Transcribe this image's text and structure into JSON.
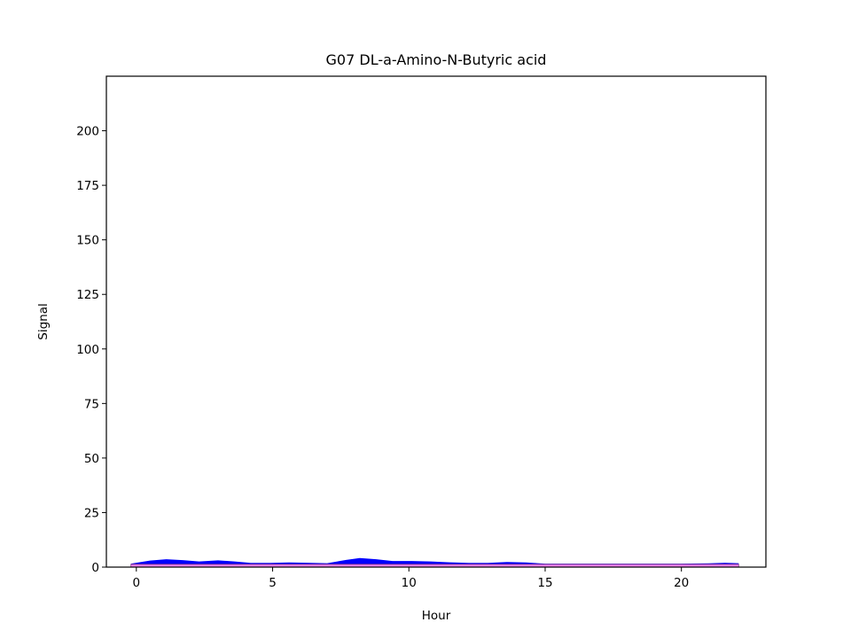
{
  "chart_data": {
    "type": "area",
    "title": "G07 DL-a-Amino-N-Butyric acid",
    "xlabel": "Hour",
    "ylabel": "Signal",
    "xlim": [
      -1.1,
      23.1
    ],
    "ylim": [
      0,
      225
    ],
    "xticks": [
      0,
      5,
      10,
      15,
      20
    ],
    "yticks": [
      0,
      25,
      50,
      75,
      100,
      125,
      150,
      175,
      200
    ],
    "grid": false,
    "legend": "none",
    "colors": {
      "upper_fill": "#0000ff",
      "lower_fill": "#ee82ee"
    },
    "series": [
      {
        "x": [
          -0.2,
          0.5,
          1.1,
          1.7,
          2.3,
          3.0,
          3.6,
          4.2,
          4.9,
          5.6,
          6.3,
          7.0,
          7.7,
          8.2,
          8.8,
          9.4,
          10.1,
          10.8,
          11.5,
          12.2,
          12.9,
          13.6,
          14.3,
          15.0,
          16.0,
          17.0,
          18.0,
          19.0,
          20.0,
          21.0,
          21.6,
          22.1
        ],
        "values": [
          1.6,
          3.0,
          3.6,
          3.2,
          2.6,
          3.1,
          2.6,
          1.9,
          1.9,
          2.1,
          2.0,
          1.8,
          3.3,
          4.2,
          3.6,
          2.8,
          2.8,
          2.6,
          2.2,
          1.9,
          1.9,
          2.3,
          2.1,
          1.6,
          1.6,
          1.6,
          1.6,
          1.6,
          1.6,
          1.7,
          2.0,
          1.8
        ]
      },
      {
        "x": [
          -0.2,
          5.0,
          10.0,
          15.0,
          20.0,
          22.1
        ],
        "values": [
          1.3,
          1.3,
          1.3,
          1.3,
          1.3,
          1.3
        ]
      }
    ]
  }
}
